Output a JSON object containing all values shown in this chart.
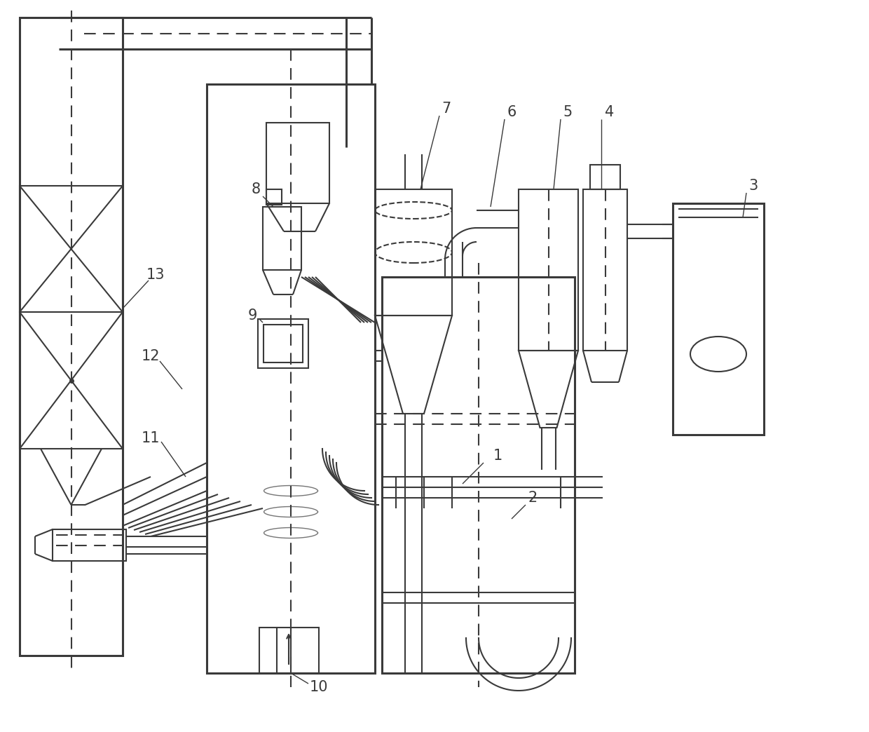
{
  "bg_color": "#ffffff",
  "lc": "#3a3a3a",
  "lw": 1.5,
  "lw2": 2.2,
  "lw3": 1.0,
  "figw": 12.4,
  "figh": 10.44,
  "dpi": 100
}
